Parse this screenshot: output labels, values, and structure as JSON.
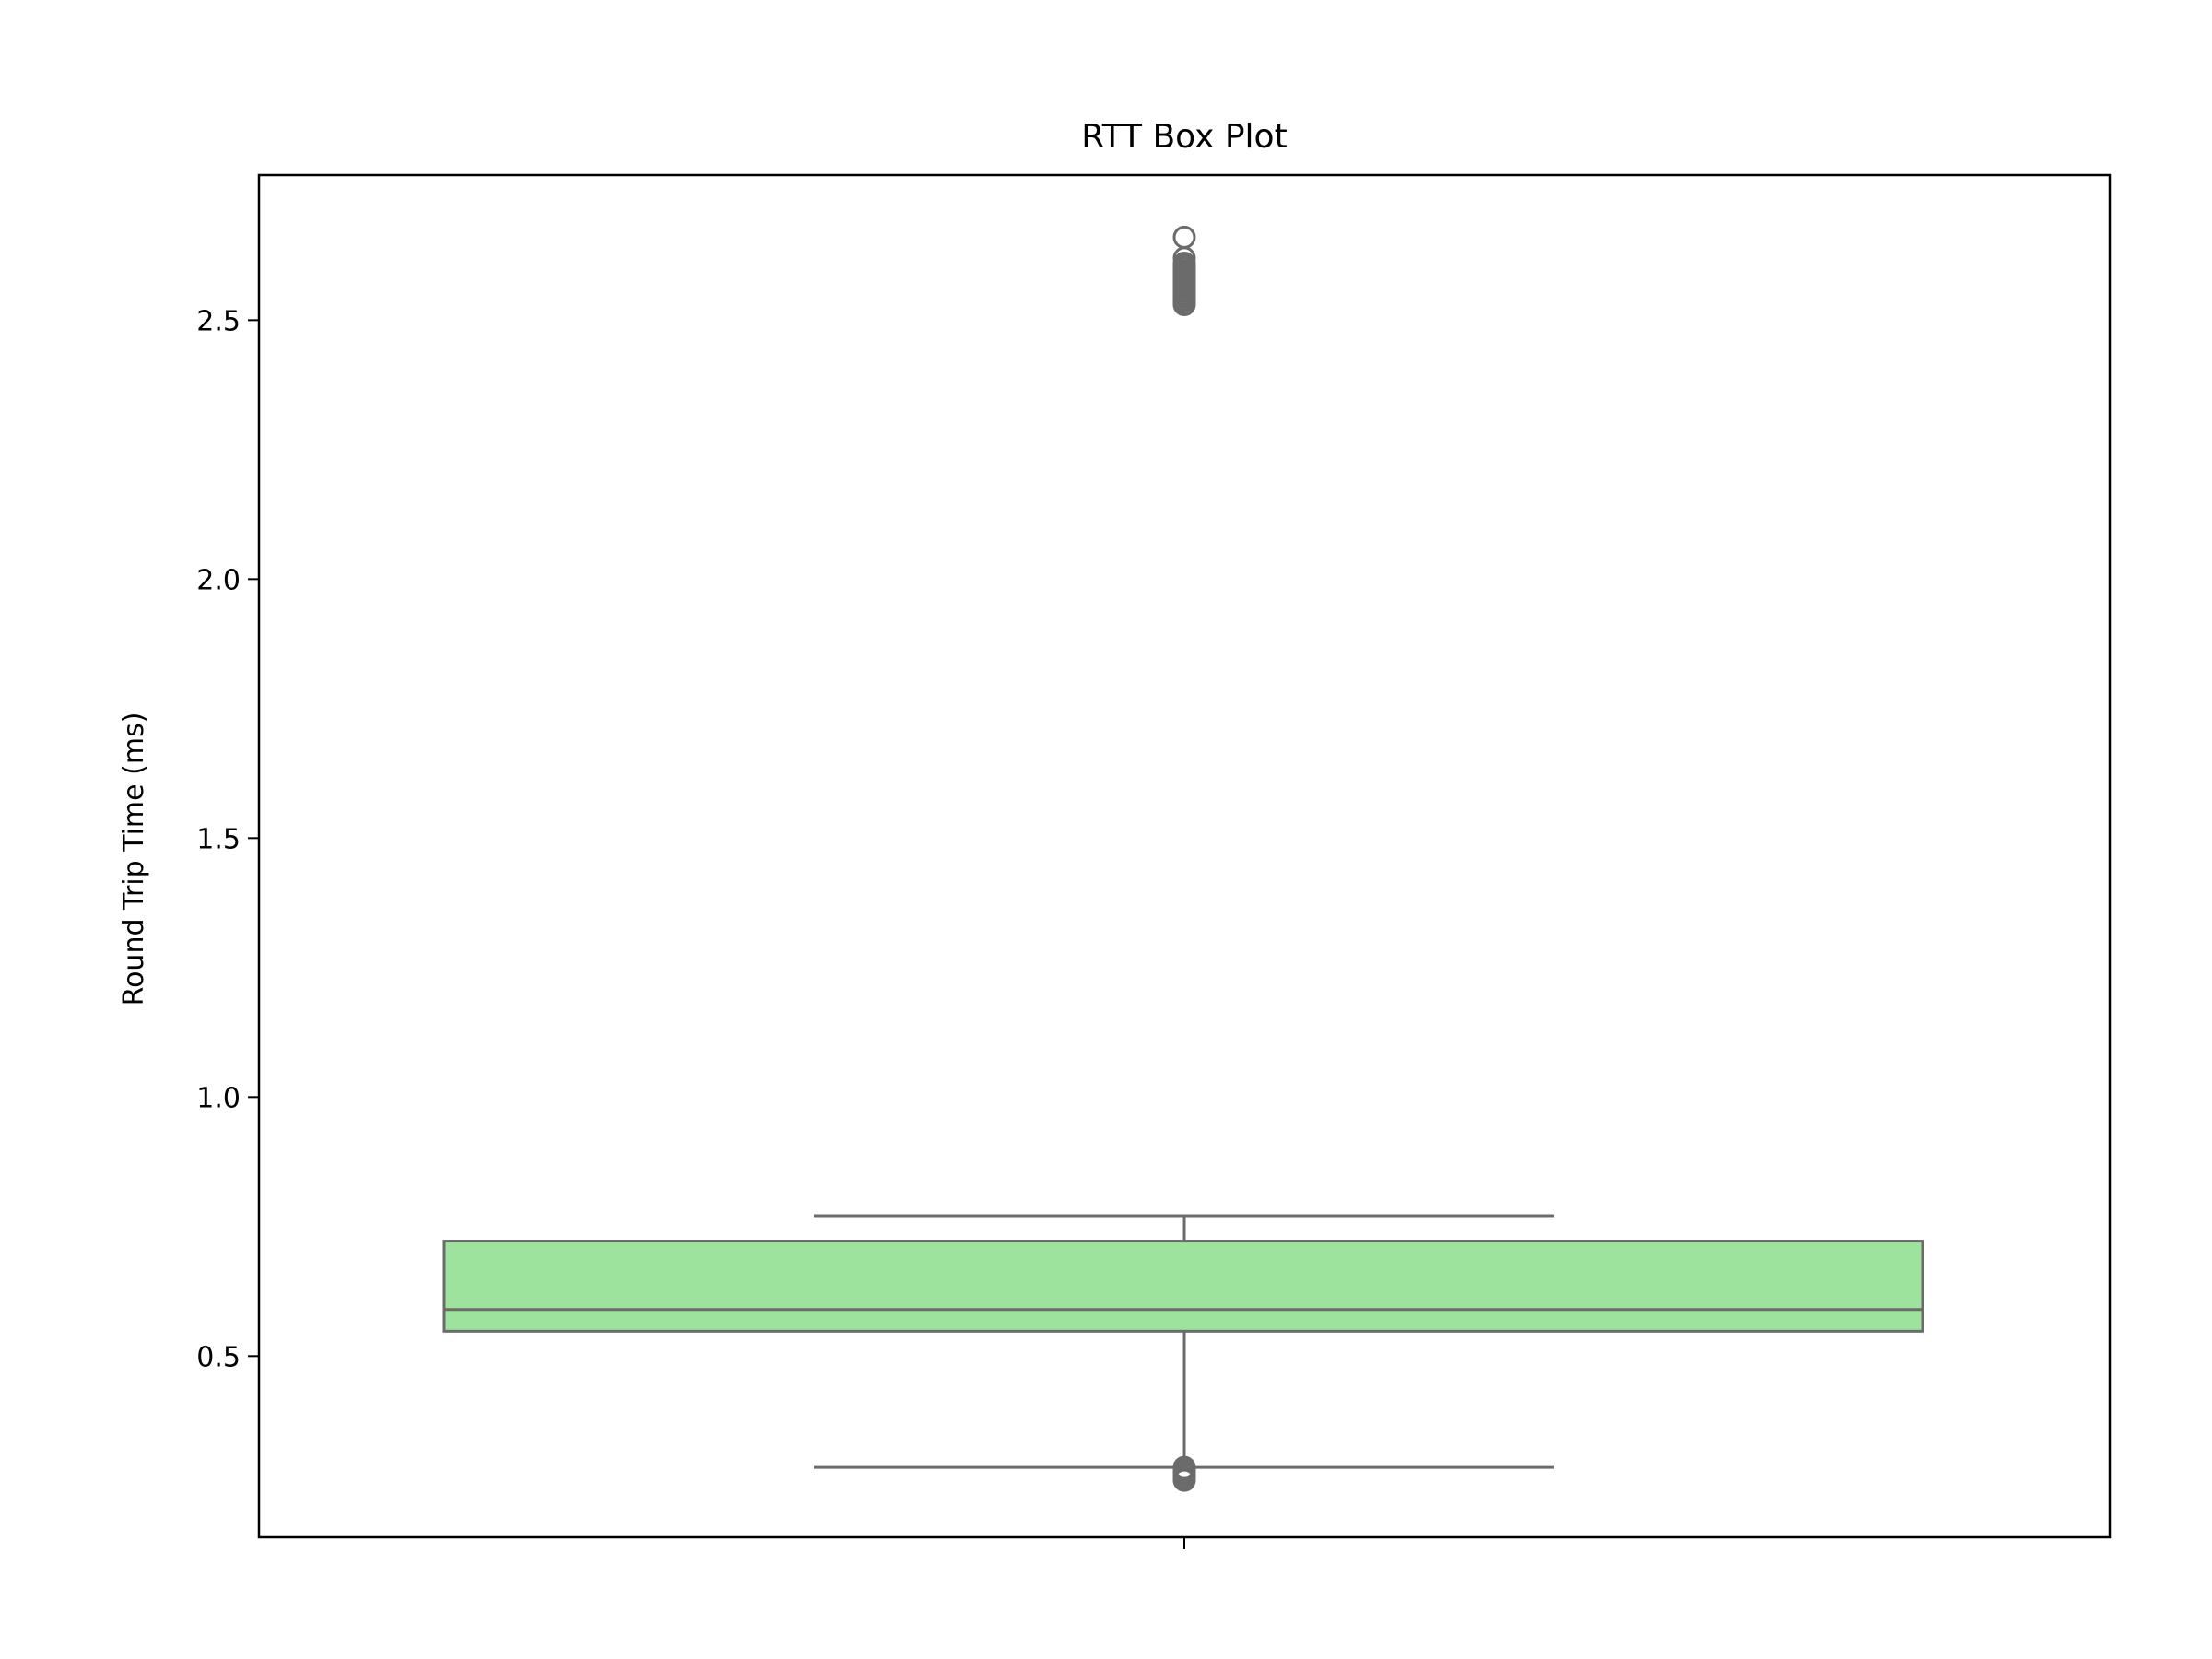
{
  "chart_data": {
    "type": "box",
    "title": "RTT Box Plot",
    "xlabel": "",
    "ylabel": "Round Trip Time (ms)",
    "ylim": [
      0.15,
      2.78
    ],
    "yticks": [
      {
        "value": 0.5,
        "label": "0.5"
      },
      {
        "value": 1.0,
        "label": "1.0"
      },
      {
        "value": 1.5,
        "label": "1.5"
      },
      {
        "value": 2.0,
        "label": "2.0"
      },
      {
        "value": 2.5,
        "label": "2.5"
      }
    ],
    "grid": false,
    "box": {
      "whisker_low": 0.285,
      "q1": 0.548,
      "median": 0.59,
      "q3": 0.722,
      "whisker_high": 0.771,
      "fill_color": "#9de39d",
      "line_color": "#6b6b6b"
    },
    "outliers_high": [
      2.53,
      2.535,
      2.54,
      2.545,
      2.55,
      2.555,
      2.56,
      2.565,
      2.57,
      2.575,
      2.58,
      2.585,
      2.59,
      2.595,
      2.6,
      2.605,
      2.61,
      2.62,
      2.66
    ],
    "outliers_low": [
      0.26,
      0.265,
      0.27,
      0.275,
      0.28,
      0.285
    ]
  }
}
